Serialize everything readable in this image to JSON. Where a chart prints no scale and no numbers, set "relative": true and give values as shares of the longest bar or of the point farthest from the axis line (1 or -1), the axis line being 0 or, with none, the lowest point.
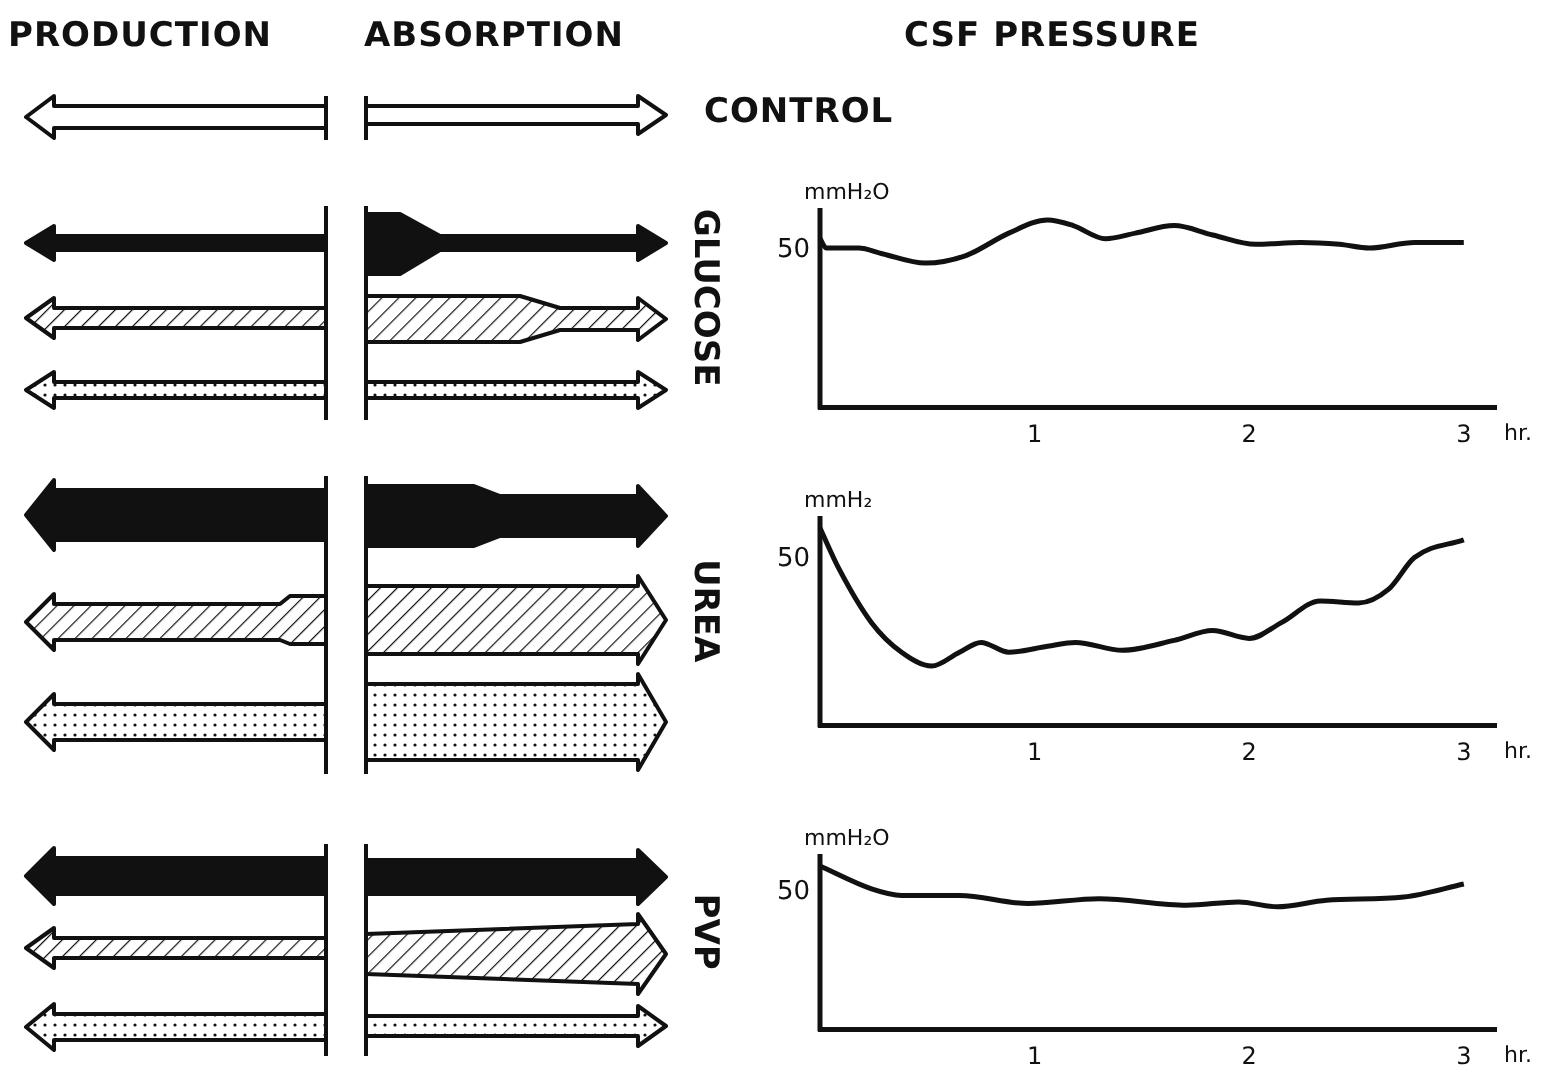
{
  "chart_data": [
    {
      "type": "other",
      "annotations": [
        "PRODUCTION",
        "ABSORPTION",
        "CSF PRESSURE",
        "CONTROL"
      ]
    },
    {
      "type": "line",
      "title": "GLUCOSE",
      "ylabel": "mmH₂O",
      "xlabel": "hr.",
      "relative": true,
      "color": "#111111",
      "xlim": [
        0,
        3.15
      ],
      "xticks": [
        1,
        2,
        3
      ],
      "annotations": [
        "50"
      ],
      "x": [
        0,
        0.03,
        0.18,
        0.29,
        0.49,
        0.68,
        0.88,
        1.06,
        1.18,
        1.33,
        1.47,
        1.65,
        1.83,
        2.03,
        2.24,
        2.42,
        2.56,
        2.77,
        3.0
      ],
      "values": [
        0.9,
        0.85,
        0.85,
        0.82,
        0.77,
        0.81,
        0.93,
        1.0,
        0.97,
        0.9,
        0.93,
        0.97,
        0.92,
        0.87,
        0.88,
        0.87,
        0.85,
        0.88,
        0.88
      ]
    },
    {
      "type": "line",
      "title": "UREA",
      "ylabel": "mmH₂",
      "xlabel": "hr.",
      "relative": true,
      "color": "#111111",
      "xlim": [
        0,
        3.15
      ],
      "xticks": [
        1,
        2,
        3
      ],
      "annotations": [
        "50"
      ],
      "x": [
        0,
        0.09,
        0.24,
        0.38,
        0.52,
        0.65,
        0.75,
        0.88,
        1.06,
        1.19,
        1.41,
        1.65,
        1.83,
        2.0,
        2.15,
        2.33,
        2.51,
        2.65,
        2.77,
        3.0
      ],
      "values": [
        1.0,
        0.79,
        0.52,
        0.37,
        0.3,
        0.37,
        0.42,
        0.37,
        0.4,
        0.42,
        0.38,
        0.43,
        0.48,
        0.44,
        0.52,
        0.63,
        0.62,
        0.69,
        0.85,
        0.94
      ]
    },
    {
      "type": "line",
      "title": "PVP",
      "ylabel": "mmH₂O",
      "xlabel": "hr.",
      "relative": true,
      "color": "#111111",
      "xlim": [
        0,
        3.15
      ],
      "xticks": [
        1,
        2,
        3
      ],
      "annotations": [
        "50"
      ],
      "x": [
        0,
        0.24,
        0.38,
        0.65,
        0.97,
        1.3,
        1.71,
        1.95,
        2.13,
        2.36,
        2.72,
        3.0
      ],
      "values": [
        1.0,
        0.86,
        0.82,
        0.82,
        0.77,
        0.8,
        0.76,
        0.78,
        0.75,
        0.79,
        0.81,
        0.89
      ]
    }
  ]
}
